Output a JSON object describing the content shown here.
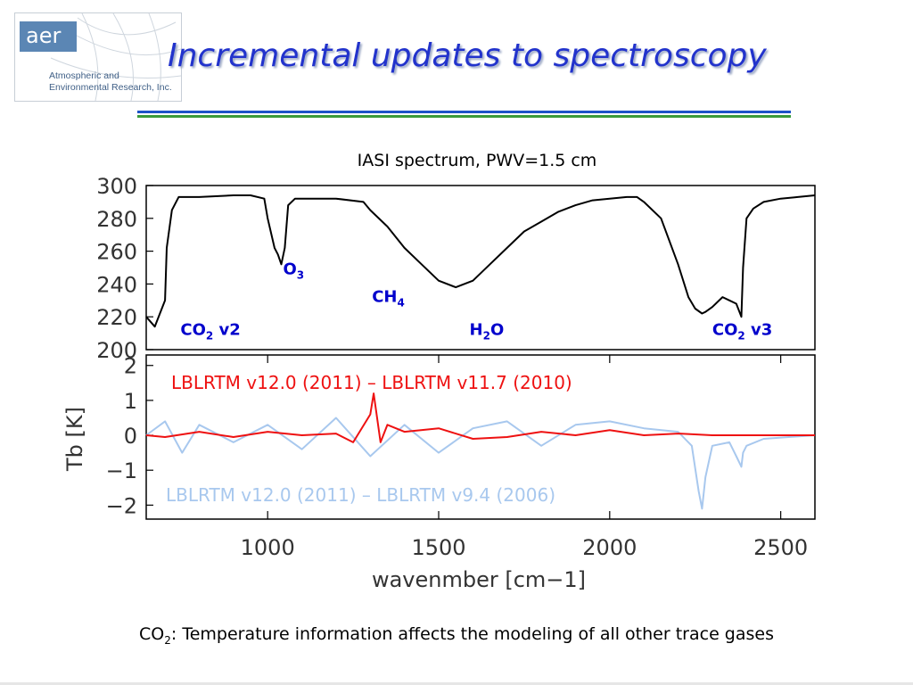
{
  "logo": {
    "wordmark": "aer",
    "line1": "Atmospheric and",
    "line2": "Environmental Research, Inc."
  },
  "slide_title": "Incremental updates to spectroscopy",
  "footnote": {
    "species": "CO",
    "subscript": "2",
    "text": ": Temperature information affects the modeling of all other trace gases"
  },
  "colors": {
    "title": "#2233cc",
    "annotation": "#0000cc",
    "diff_new": "#ee1111",
    "diff_old": "#a8c8ee",
    "spectrum": "#000000"
  },
  "chart_data": [
    {
      "type": "line",
      "title": "IASI spectrum, PWV=1.5 cm",
      "ylim": [
        200,
        300
      ],
      "yticks": [
        200,
        220,
        240,
        260,
        280,
        300
      ],
      "xlim": [
        645,
        2600
      ],
      "series": [
        {
          "x": [
            645,
            670,
            700,
            705,
            720,
            740,
            800,
            900,
            950,
            990,
            1000,
            1020,
            1030,
            1040,
            1050,
            1060,
            1080,
            1200,
            1280,
            1300,
            1350,
            1400,
            1450,
            1500,
            1550,
            1600,
            1650,
            1700,
            1750,
            1800,
            1850,
            1900,
            1950,
            2000,
            2050,
            2080,
            2100,
            2150,
            2200,
            2230,
            2250,
            2270,
            2280,
            2300,
            2330,
            2350,
            2370,
            2385,
            2390,
            2400,
            2420,
            2450,
            2500,
            2550,
            2600
          ],
          "y": [
            220,
            214,
            230,
            262,
            285,
            293,
            293,
            294,
            294,
            292,
            280,
            262,
            258,
            252,
            262,
            288,
            292,
            292,
            290,
            285,
            275,
            262,
            252,
            242,
            238,
            242,
            252,
            262,
            272,
            278,
            284,
            288,
            291,
            292,
            293,
            293,
            290,
            280,
            252,
            232,
            225,
            222,
            223,
            226,
            232,
            230,
            228,
            220,
            250,
            280,
            286,
            290,
            292,
            293,
            294
          ]
        }
      ],
      "annotations": [
        {
          "text": "O",
          "sub": "3",
          "x": 1045,
          "y": 246
        },
        {
          "text": "CH",
          "sub": "4",
          "x": 1305,
          "y": 229
        },
        {
          "text": "CO",
          "sub": "2",
          "tail": " v2",
          "x": 745,
          "y": 209
        },
        {
          "text": "H",
          "sub": "2",
          "tail": "O",
          "x": 1590,
          "y": 209
        },
        {
          "text": "CO",
          "sub": "2",
          "tail": " v3",
          "x": 2300,
          "y": 209
        }
      ]
    },
    {
      "type": "line",
      "ylabel": "Tb [K]",
      "xlabel": "wavenmber [cm−1]",
      "xlim": [
        645,
        2600
      ],
      "xticks": [
        1000,
        1500,
        2000,
        2500
      ],
      "ylim": [
        -2.4,
        2.3
      ],
      "yticks": [
        2,
        1,
        0,
        -1,
        -2
      ],
      "ytick_labels": [
        "2",
        "1",
        "0",
        "−1",
        "−2"
      ],
      "series": [
        {
          "name": "LBLRTM v12.0 (2011) – LBLRTM v9.4 (2006)",
          "color": "#a8c8ee",
          "x": [
            645,
            700,
            750,
            800,
            900,
            1000,
            1100,
            1200,
            1300,
            1400,
            1500,
            1600,
            1700,
            1800,
            1900,
            2000,
            2100,
            2200,
            2240,
            2260,
            2270,
            2280,
            2300,
            2350,
            2370,
            2385,
            2390,
            2400,
            2450,
            2600
          ],
          "y": [
            0.0,
            0.4,
            -0.5,
            0.3,
            -0.2,
            0.3,
            -0.4,
            0.5,
            -0.6,
            0.3,
            -0.5,
            0.2,
            0.4,
            -0.3,
            0.3,
            0.4,
            0.2,
            0.1,
            -0.3,
            -1.6,
            -2.1,
            -1.2,
            -0.3,
            -0.2,
            -0.6,
            -0.9,
            -0.5,
            -0.3,
            -0.1,
            0.0
          ]
        },
        {
          "name": "LBLRTM v12.0 (2011) – LBLRTM v11.7 (2010)",
          "color": "#ee1111",
          "x": [
            645,
            700,
            800,
            900,
            1000,
            1100,
            1200,
            1250,
            1300,
            1310,
            1330,
            1350,
            1400,
            1500,
            1600,
            1700,
            1800,
            1900,
            2000,
            2100,
            2200,
            2300,
            2400,
            2600
          ],
          "y": [
            0.0,
            -0.05,
            0.1,
            -0.05,
            0.1,
            0.0,
            0.05,
            -0.2,
            0.6,
            1.2,
            -0.2,
            0.3,
            0.1,
            0.2,
            -0.1,
            -0.05,
            0.1,
            0.0,
            0.15,
            0.0,
            0.05,
            0.0,
            0.0,
            0.0
          ]
        }
      ]
    }
  ]
}
